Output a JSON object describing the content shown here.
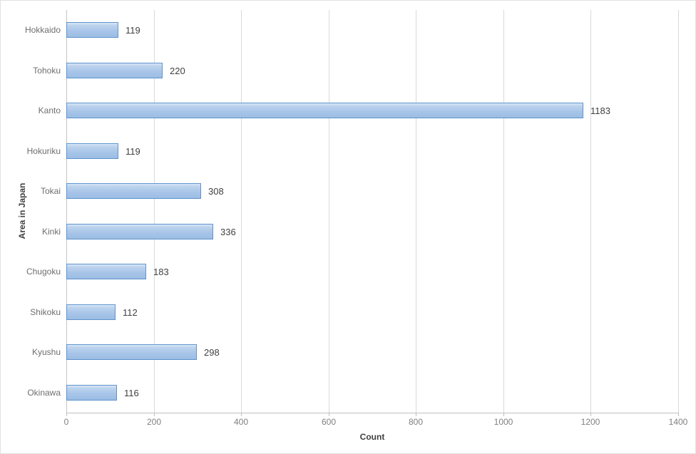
{
  "chart_data": {
    "type": "bar",
    "orientation": "horizontal",
    "title": "",
    "xlabel": "Count",
    "ylabel": "Area in Japan",
    "categories": [
      "Hokkaido",
      "Tohoku",
      "Kanto",
      "Hokuriku",
      "Tokai",
      "Kinki",
      "Chugoku",
      "Shikoku",
      "Kyushu",
      "Okinawa"
    ],
    "values": [
      119,
      220,
      1183,
      119,
      308,
      336,
      183,
      112,
      298,
      116
    ],
    "data_labels": [
      "119",
      "220",
      "1183",
      "119",
      "308",
      "336",
      "183",
      "112",
      "298",
      "116"
    ],
    "xlim": [
      0,
      1400
    ],
    "xticks": [
      0,
      200,
      400,
      600,
      800,
      1000,
      1200,
      1400
    ],
    "xtick_labels": [
      "0",
      "200",
      "400",
      "600",
      "800",
      "1000",
      "1200",
      "1400"
    ],
    "grid": true,
    "legend": false,
    "colors": {
      "bar_fill_light": "#d9e7f6",
      "bar_fill_dark": "#9cbde4",
      "bar_border": "#5e94cd",
      "gridline": "#d9d9d9",
      "axis_line": "#bfbfbf",
      "tick_label": "#7f7f7f",
      "category_label": "#6e6e6e",
      "value_label": "#3f3f3f",
      "axis_title": "#404040",
      "background": "#ffffff"
    }
  }
}
